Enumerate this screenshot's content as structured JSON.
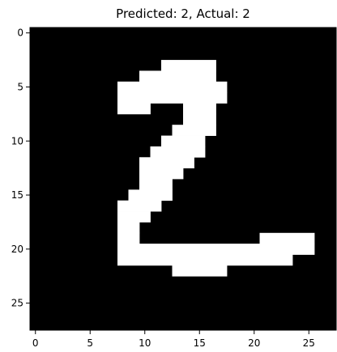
{
  "chart_data": {
    "type": "heatmap",
    "title": "Predicted: 2, Actual: 2",
    "xlabel": "",
    "ylabel": "",
    "grid": false,
    "legend": "none",
    "colormap": "gray",
    "background_color": "#000000",
    "ink_color": "#ffffff",
    "shape": [
      28,
      28
    ],
    "xlim": [
      -0.5,
      27.5
    ],
    "ylim": [
      27.5,
      -0.5
    ],
    "xticks": [
      0,
      5,
      10,
      15,
      20,
      25
    ],
    "yticks": [
      0,
      5,
      10,
      15,
      20,
      25
    ],
    "xtick_labels": [
      "0",
      "5",
      "10",
      "15",
      "20",
      "25"
    ],
    "ytick_labels": [
      "0",
      "5",
      "10",
      "15",
      "20",
      "25"
    ],
    "lit_pixels": [
      {
        "row": 3,
        "cols": [
          12,
          16
        ]
      },
      {
        "row": 4,
        "cols": [
          10,
          16
        ]
      },
      {
        "row": 5,
        "cols": [
          8,
          17
        ]
      },
      {
        "row": 6,
        "cols": [
          8,
          17
        ]
      },
      {
        "row": 7,
        "cols": [
          8,
          10
        ]
      },
      {
        "row": 7,
        "cols": [
          14,
          16
        ]
      },
      {
        "row": 8,
        "cols": [
          14,
          16
        ]
      },
      {
        "row": 9,
        "cols": [
          13,
          16
        ]
      },
      {
        "row": 10,
        "cols": [
          12,
          15
        ]
      },
      {
        "row": 11,
        "cols": [
          11,
          15
        ]
      },
      {
        "row": 12,
        "cols": [
          10,
          14
        ]
      },
      {
        "row": 13,
        "cols": [
          10,
          13
        ]
      },
      {
        "row": 14,
        "cols": [
          10,
          12
        ]
      },
      {
        "row": 15,
        "cols": [
          9,
          12
        ]
      },
      {
        "row": 16,
        "cols": [
          8,
          11
        ]
      },
      {
        "row": 17,
        "cols": [
          8,
          10
        ]
      },
      {
        "row": 18,
        "cols": [
          8,
          9
        ]
      },
      {
        "row": 19,
        "cols": [
          8,
          9
        ]
      },
      {
        "row": 19,
        "cols": [
          21,
          25
        ]
      },
      {
        "row": 20,
        "cols": [
          8,
          25
        ]
      },
      {
        "row": 21,
        "cols": [
          8,
          23
        ]
      },
      {
        "row": 22,
        "cols": [
          13,
          17
        ]
      }
    ]
  }
}
